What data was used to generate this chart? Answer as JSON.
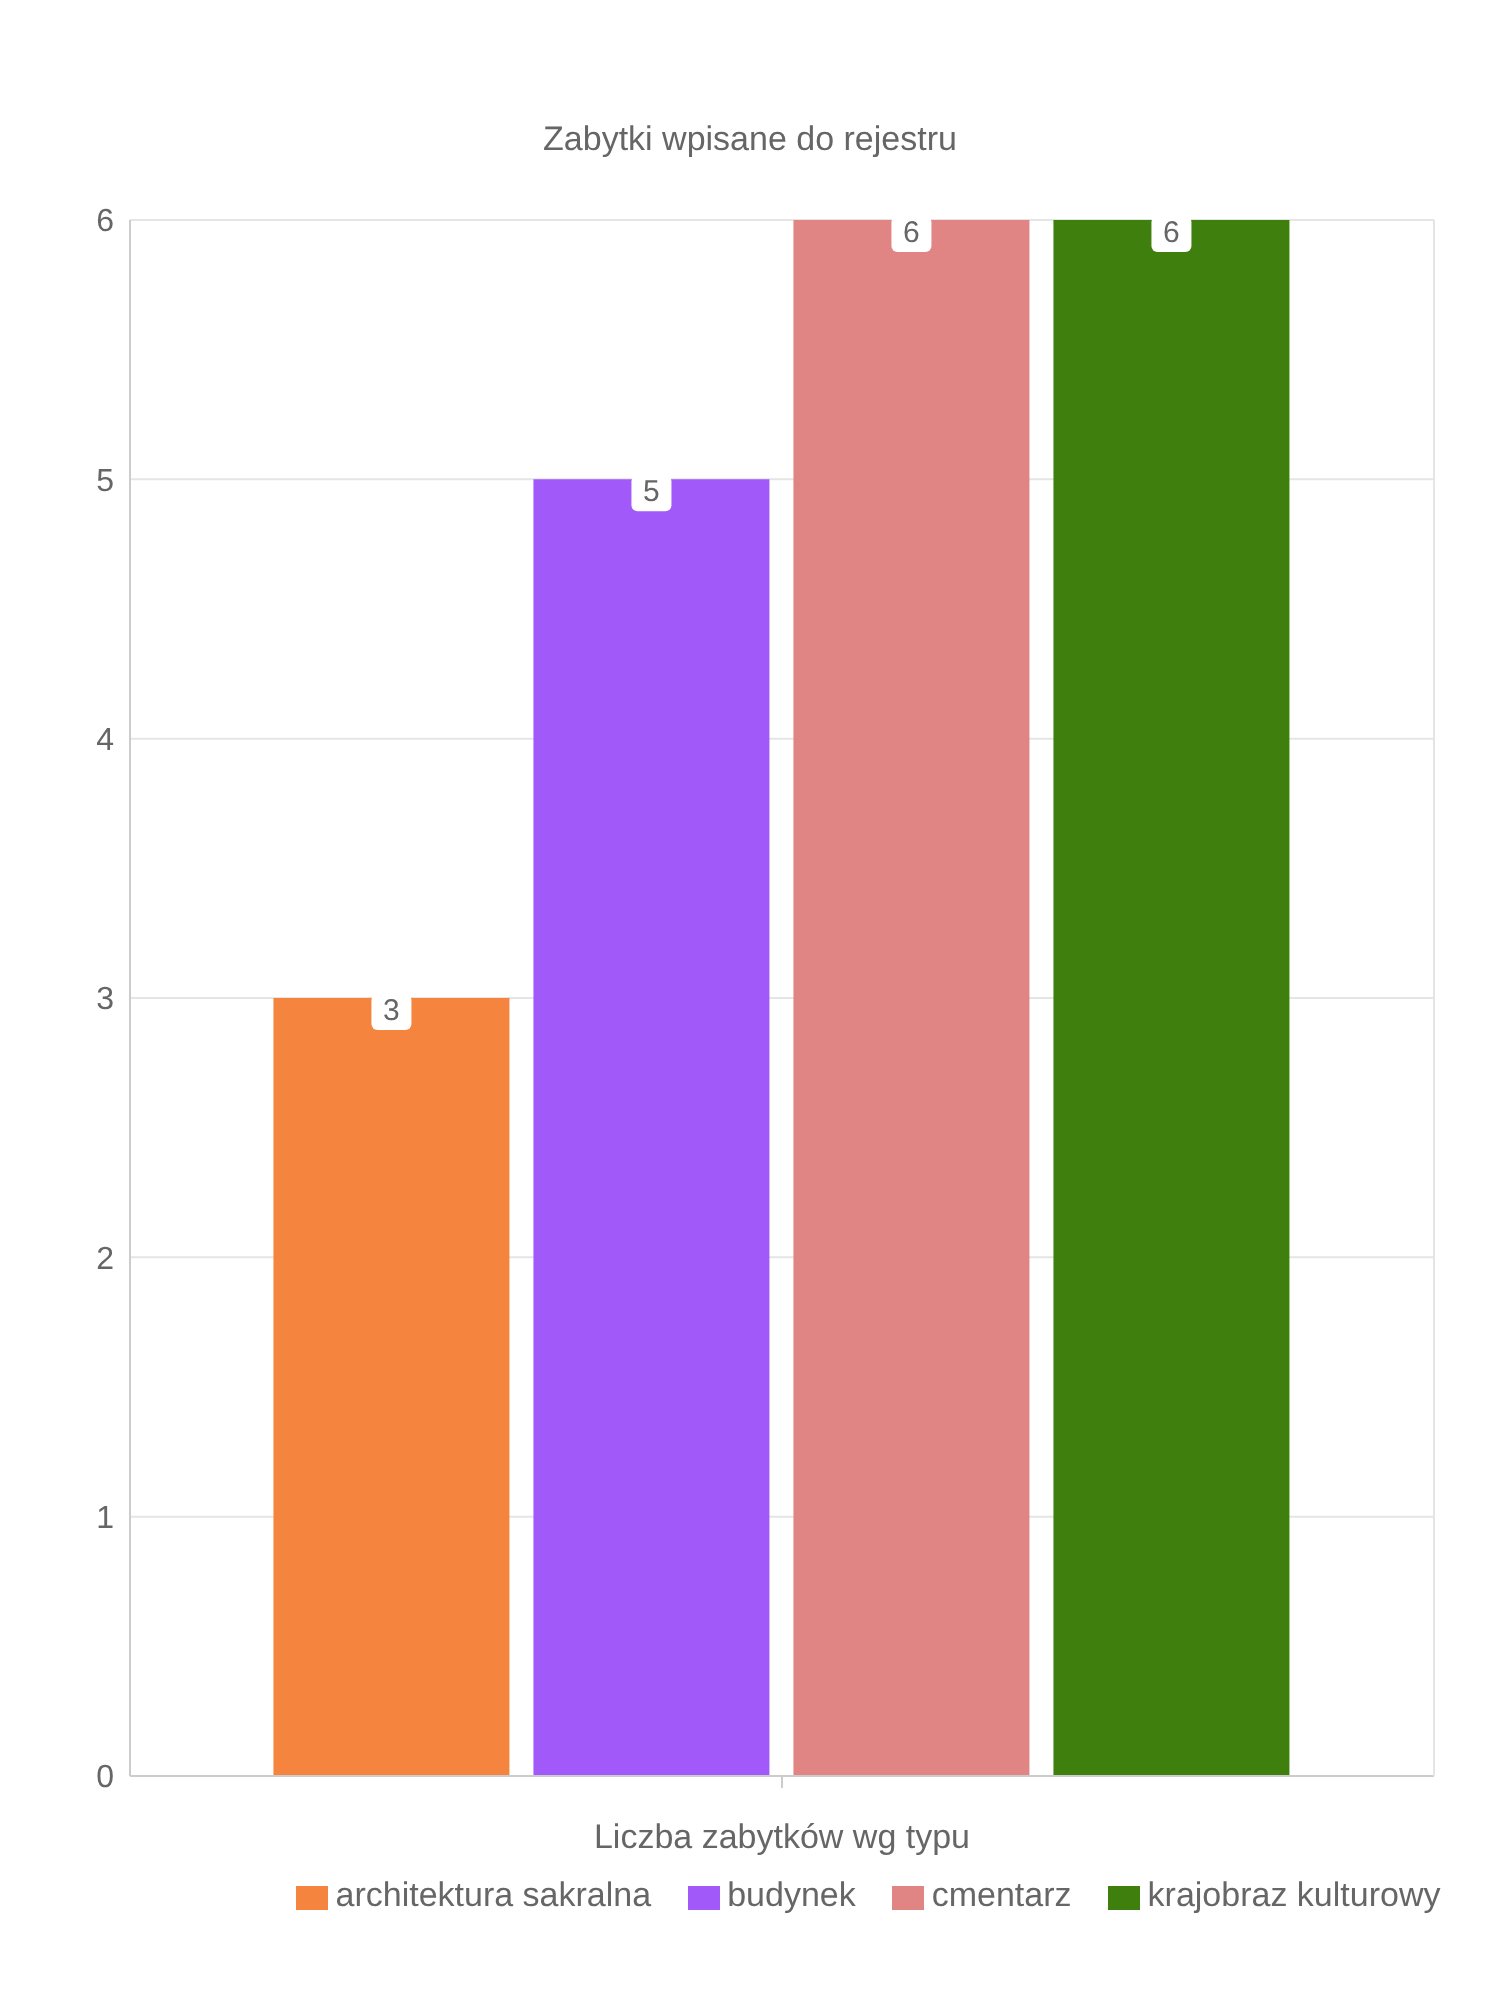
{
  "chart_data": {
    "type": "bar",
    "title": "Zabytki wpisane do rejestru",
    "xlabel": "Liczba zabytków wg typu",
    "categories": [
      null
    ],
    "series": [
      {
        "name": "architektura sakralna",
        "color": "#f5843f",
        "values": [
          3
        ]
      },
      {
        "name": "budynek",
        "color": "#a259fa",
        "values": [
          5
        ]
      },
      {
        "name": "cmentarz",
        "color": "#e08484",
        "values": [
          6
        ]
      },
      {
        "name": "krajobraz kulturowy",
        "color": "#3f7f0d",
        "values": [
          6
        ]
      }
    ],
    "ylim": [
      0,
      6
    ],
    "yticks": [
      0,
      1,
      2,
      3,
      4,
      5,
      6
    ],
    "grid": "y",
    "legend": "bottom",
    "data_labels": true
  }
}
